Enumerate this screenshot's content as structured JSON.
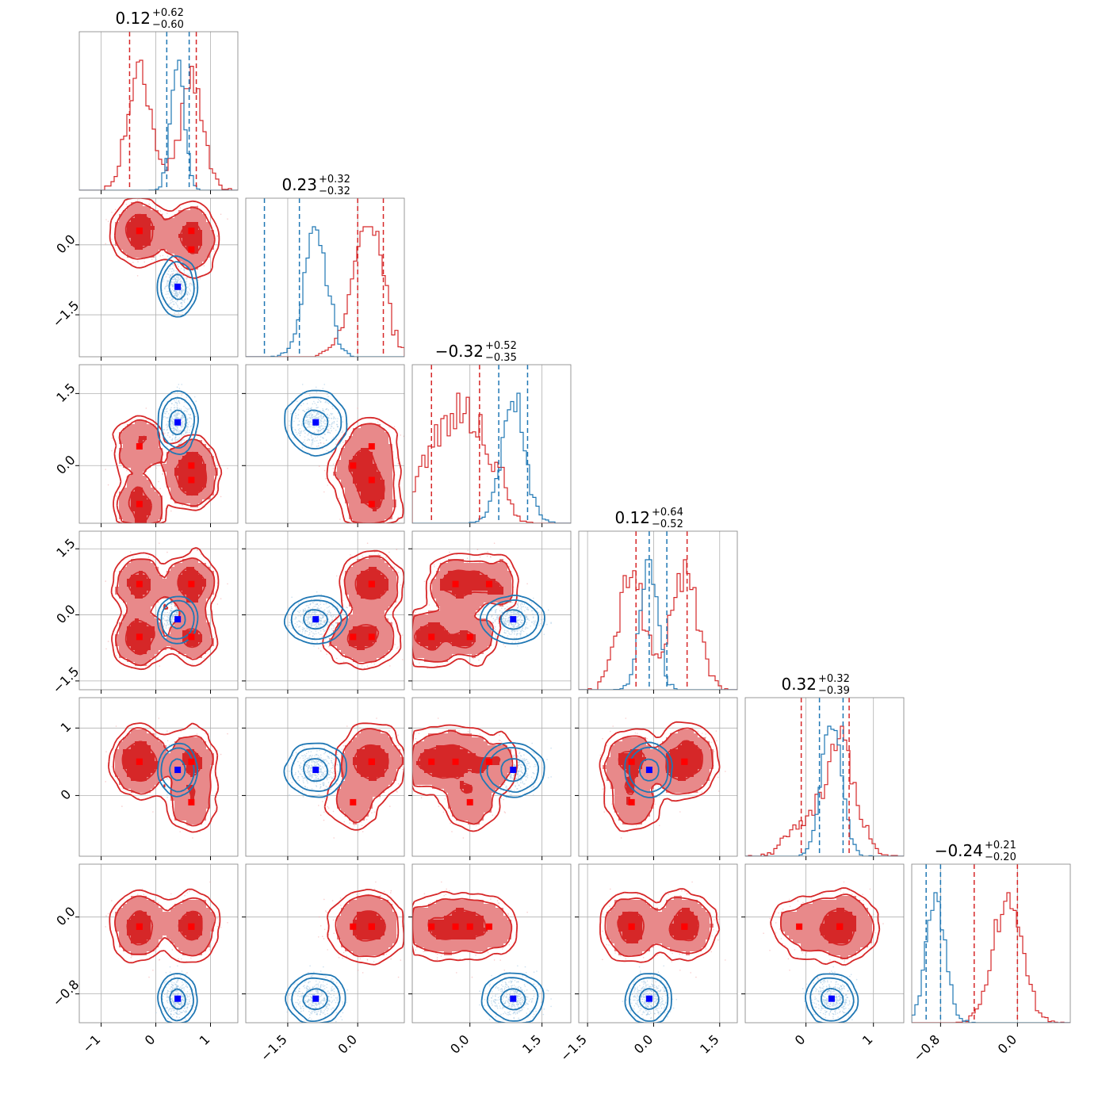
{
  "chart_data": {
    "type": "corner",
    "colors": {
      "red": "#d62728",
      "red_fill": "#e8898a",
      "blue": "#1f77b4",
      "grid": "#b0b0b0",
      "marker_red": "#ff0000",
      "marker_blue": "#0000ff"
    },
    "params": [
      {
        "title": "0.12",
        "plus": "+0.62",
        "minus": "−0.60",
        "range": [
          -1.4,
          1.5
        ],
        "ticks": [
          -1,
          0,
          1
        ],
        "tick_labels": [
          "−1",
          "0",
          "1"
        ]
      },
      {
        "title": "0.23",
        "plus": "+0.32",
        "minus": "−0.32",
        "range": [
          -2.4,
          1.0
        ],
        "ticks": [
          -1.5,
          0.0
        ],
        "tick_labels": [
          "−1.5",
          "0.0"
        ]
      },
      {
        "title": "−0.32",
        "plus": "+0.52",
        "minus": "−0.35",
        "range": [
          -1.2,
          2.1
        ],
        "ticks": [
          0.0,
          1.5
        ],
        "tick_labels": [
          "0.0",
          "1.5"
        ]
      },
      {
        "title": "0.12",
        "plus": "+0.64",
        "minus": "−0.52",
        "range": [
          -1.7,
          1.9
        ],
        "ticks": [
          -1.5,
          0.0,
          1.5
        ],
        "tick_labels": [
          "−1.5",
          "0.0",
          "1.5"
        ]
      },
      {
        "title": "0.32",
        "plus": "+0.32",
        "minus": "−0.39",
        "range": [
          -0.9,
          1.45
        ],
        "ticks": [
          0,
          1
        ],
        "tick_labels": [
          "0",
          "1"
        ]
      },
      {
        "title": "−0.24",
        "plus": "+0.21",
        "minus": "−0.20",
        "range": [
          -1.1,
          0.55
        ],
        "ticks": [
          -0.8,
          0.0
        ],
        "tick_labels": [
          "−0.8",
          "0.0"
        ]
      }
    ],
    "y_ticks": [
      null,
      {
        "ticks": [
          0.0,
          -1.5
        ],
        "tick_labels": [
          "0.0",
          "−1.5"
        ]
      },
      {
        "ticks": [
          1.5,
          0.0
        ],
        "tick_labels": [
          "1.5",
          "0.0"
        ]
      },
      {
        "ticks": [
          1.5,
          0.0,
          -1.5
        ],
        "tick_labels": [
          "1.5",
          "0.0",
          "−1.5"
        ]
      },
      {
        "ticks": [
          1,
          0
        ],
        "tick_labels": [
          "1",
          "0"
        ]
      },
      {
        "ticks": [
          0.0,
          -0.8
        ],
        "tick_labels": [
          "0.0",
          "−0.8"
        ]
      }
    ],
    "red_modes": [
      {
        "p": [
          -0.3,
          0.3,
          -0.8,
          -0.5,
          0.5,
          -0.1
        ],
        "w": 1
      },
      {
        "p": [
          0.65,
          0.3,
          -0.3,
          0.7,
          0.5,
          -0.1
        ],
        "w": 1
      },
      {
        "p": [
          -0.3,
          0.3,
          0.4,
          0.7,
          0.5,
          -0.1
        ],
        "w": 0.8
      },
      {
        "p": [
          0.65,
          -0.1,
          0.0,
          -0.5,
          -0.1,
          -0.1
        ],
        "w": 0.7
      }
    ],
    "blue_point": [
      0.4,
      -0.9,
      0.9,
      -0.1,
      0.38,
      -0.85
    ],
    "blue_std": [
      0.12,
      0.25,
      0.25,
      0.2,
      0.15,
      0.1
    ],
    "red_std": [
      0.22,
      0.3,
      0.3,
      0.3,
      0.22,
      0.15
    ],
    "quantile_lines": {
      "blue": [
        [
          0.2,
          0.61
        ],
        [
          -2.0,
          -1.25
        ],
        [
          0.6,
          1.2
        ],
        [
          -0.1,
          0.3
        ],
        [
          0.2,
          0.55
        ],
        [
          -0.95,
          -0.8
        ]
      ],
      "red": [
        [
          -0.48,
          0.74
        ],
        [
          0.0,
          0.55
        ],
        [
          -0.8,
          0.2
        ],
        [
          -0.4,
          0.76
        ],
        [
          -0.07,
          0.64
        ],
        [
          -0.45,
          0.0
        ]
      ]
    }
  }
}
